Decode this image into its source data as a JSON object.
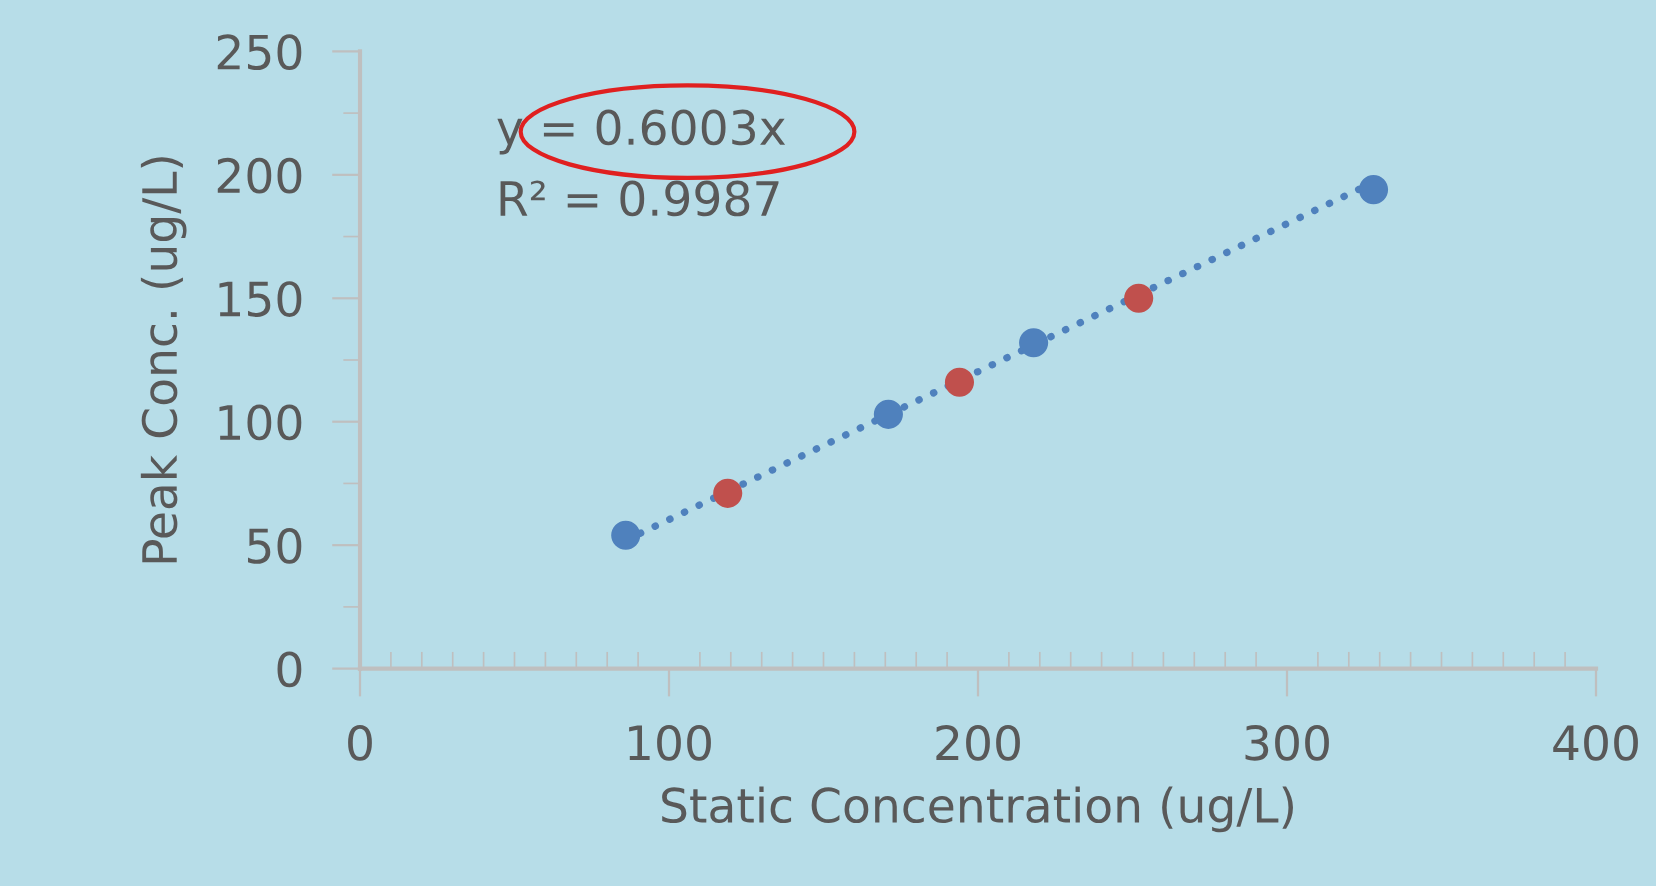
{
  "chart_data": {
    "type": "scatter",
    "xlabel": "Static Concentration (ug/L)",
    "ylabel": "Peak Conc. (ug/L)",
    "series": [
      {
        "color": "#4f81bd",
        "x": [
          86,
          171,
          218,
          328
        ],
        "values": [
          54,
          103,
          132,
          194
        ]
      },
      {
        "color": "#c0504d",
        "x": [
          119,
          194,
          252
        ],
        "values": [
          71,
          116,
          150
        ]
      },
      {
        "type": "line",
        "color": "#4f81bd",
        "line_style": "dotted",
        "marker": "none",
        "x": [
          86,
          328
        ],
        "values": [
          52,
          197
        ]
      }
    ],
    "annotations": [
      "y = 0.6003x",
      "R² = 0.9987"
    ],
    "xlim": [
      0,
      400
    ],
    "ylim": [
      0,
      250
    ],
    "xticks": [
      0,
      100,
      200,
      300,
      400
    ],
    "yticks": [
      0,
      50,
      100,
      150,
      200,
      250
    ],
    "marker": "circle",
    "grid": false,
    "legend": false
  }
}
